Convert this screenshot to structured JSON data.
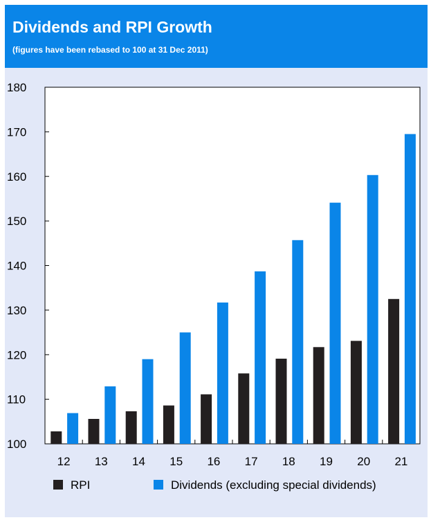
{
  "header": {
    "title": "Dividends and RPI Growth",
    "subtitle": "(figures have been rebased to 100 at 31 Dec 2011)"
  },
  "colors": {
    "header_bg": "#0a85e8",
    "panel_bg": "#e2e8f8",
    "rpi": "#231f20",
    "dividends": "#0a85e8"
  },
  "chart_data": {
    "type": "bar",
    "title": "Dividends and RPI Growth",
    "subtitle": "(figures have been rebased to 100 at 31 Dec 2011)",
    "categories": [
      "12",
      "13",
      "14",
      "15",
      "16",
      "17",
      "18",
      "19",
      "20",
      "21"
    ],
    "series": [
      {
        "name": "RPI",
        "color": "#231f20",
        "values": [
          102.8,
          105.6,
          107.3,
          108.6,
          111.1,
          115.8,
          119.1,
          121.7,
          123.1,
          132.5
        ]
      },
      {
        "name": "Dividends (excluding special dividends)",
        "color": "#0a85e8",
        "values": [
          106.9,
          112.9,
          119.0,
          125.0,
          131.7,
          138.7,
          145.7,
          154.1,
          160.3,
          169.5
        ]
      }
    ],
    "yticks": [
      100,
      110,
      120,
      130,
      140,
      150,
      160,
      170,
      180
    ],
    "ylim": [
      100,
      180
    ],
    "grid": false,
    "legend_position": "bottom"
  }
}
